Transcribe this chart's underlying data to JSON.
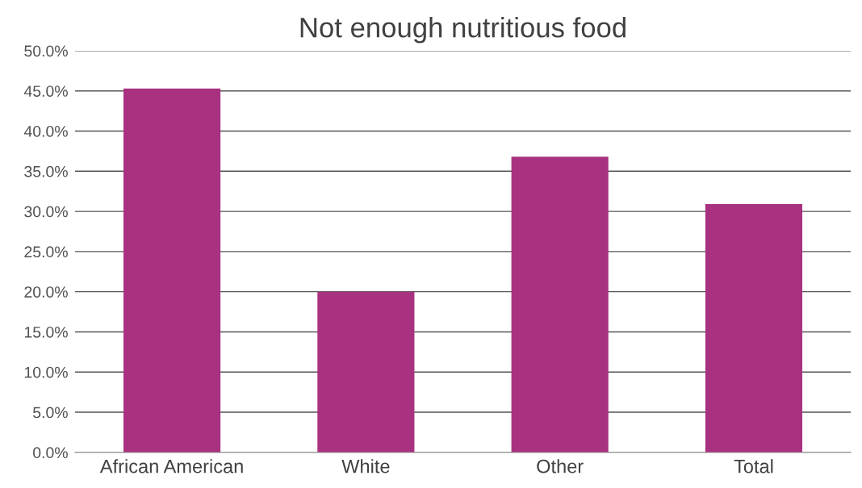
{
  "chart_data": {
    "type": "bar",
    "title": "Not enough nutritious food",
    "categories": [
      "African American",
      "White",
      "Other",
      "Total"
    ],
    "values": [
      45.3,
      20.0,
      36.8,
      30.9
    ],
    "color": "#a8327f",
    "ylim": [
      0,
      50
    ],
    "yticks": [
      {
        "value": 0,
        "label": "0.0%"
      },
      {
        "value": 5,
        "label": "5.0%"
      },
      {
        "value": 10,
        "label": "10.0%"
      },
      {
        "value": 15,
        "label": "15.0%"
      },
      {
        "value": 20,
        "label": "20.0%"
      },
      {
        "value": 25,
        "label": "25.0%"
      },
      {
        "value": 30,
        "label": "30.0%"
      },
      {
        "value": 35,
        "label": "35.0%"
      },
      {
        "value": 40,
        "label": "40.0%"
      },
      {
        "value": 45,
        "label": "45.0%"
      },
      {
        "value": 50,
        "label": "50.0%"
      }
    ],
    "grid": "y"
  }
}
